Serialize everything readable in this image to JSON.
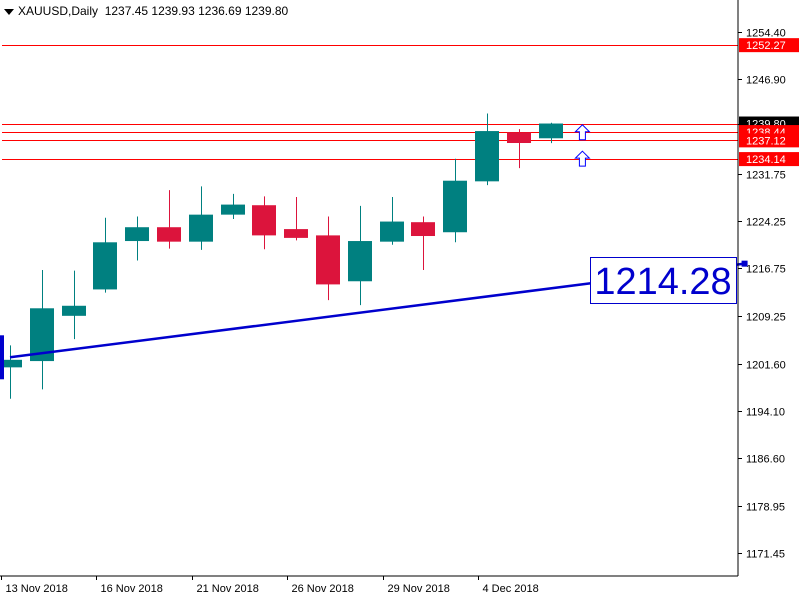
{
  "header": {
    "symbol_tf": "XAUUSD,Daily",
    "ohlc": "1237.45 1239.93 1236.69 1239.80"
  },
  "colors": {
    "bull": "#008080",
    "bear": "#dc143c",
    "level_line": "#ff0000",
    "level_box": "#ff0000",
    "trendline": "#0000cd",
    "current_price_box": "#000000",
    "arrow": "#0000ff",
    "axis": "#000000"
  },
  "chart_data": {
    "type": "candlestick",
    "title": "XAUUSD,Daily",
    "ylim": [
      1167.8,
      1258.5
    ],
    "y_ticks": [
      "1254.40",
      "1246.90",
      "1239.80",
      "1231.75",
      "1224.25",
      "1216.75",
      "1209.25",
      "1201.60",
      "1194.10",
      "1186.60",
      "1178.95",
      "1171.45"
    ],
    "x_tick_labels": [
      {
        "label": "13 Nov 2018",
        "index": 0
      },
      {
        "label": "16 Nov 2018",
        "index": 3
      },
      {
        "label": "21 Nov 2018",
        "index": 6
      },
      {
        "label": "26 Nov 2018",
        "index": 9
      },
      {
        "label": "29 Nov 2018",
        "index": 12
      },
      {
        "label": "4 Dec 2018",
        "index": 15
      }
    ],
    "candles": [
      {
        "o": 1201.0,
        "h": 1204.5,
        "l": 1196.0,
        "c": 1202.2
      },
      {
        "o": 1202.0,
        "h": 1216.5,
        "l": 1197.5,
        "c": 1210.4
      },
      {
        "o": 1209.2,
        "h": 1216.4,
        "l": 1205.5,
        "c": 1210.8
      },
      {
        "o": 1213.4,
        "h": 1224.8,
        "l": 1212.9,
        "c": 1220.9
      },
      {
        "o": 1221.1,
        "h": 1225.0,
        "l": 1218.0,
        "c": 1223.3
      },
      {
        "o": 1223.3,
        "h": 1229.2,
        "l": 1219.9,
        "c": 1221.0
      },
      {
        "o": 1221.0,
        "h": 1229.8,
        "l": 1219.7,
        "c": 1225.3
      },
      {
        "o": 1225.3,
        "h": 1228.6,
        "l": 1224.6,
        "c": 1226.9
      },
      {
        "o": 1226.8,
        "h": 1228.2,
        "l": 1219.8,
        "c": 1222.0
      },
      {
        "o": 1223.0,
        "h": 1228.1,
        "l": 1221.2,
        "c": 1221.6
      },
      {
        "o": 1222.0,
        "h": 1225.0,
        "l": 1211.7,
        "c": 1214.2
      },
      {
        "o": 1214.7,
        "h": 1226.7,
        "l": 1210.9,
        "c": 1221.1
      },
      {
        "o": 1221.0,
        "h": 1228.1,
        "l": 1220.5,
        "c": 1224.2
      },
      {
        "o": 1224.1,
        "h": 1225.0,
        "l": 1216.5,
        "c": 1221.9
      },
      {
        "o": 1222.5,
        "h": 1234.2,
        "l": 1220.9,
        "c": 1230.7
      },
      {
        "o": 1230.6,
        "h": 1241.4,
        "l": 1230.0,
        "c": 1238.6
      },
      {
        "o": 1238.4,
        "h": 1238.9,
        "l": 1232.7,
        "c": 1236.7
      },
      {
        "o": 1237.45,
        "h": 1239.93,
        "l": 1236.69,
        "c": 1239.8
      }
    ],
    "levels": [
      {
        "value": 1252.27,
        "label": "1252.27"
      },
      {
        "value": 1238.44,
        "label": "1238.44"
      },
      {
        "value": 1237.12,
        "label": "1237.12"
      },
      {
        "value": 1234.14,
        "label": "1234.14"
      }
    ],
    "current_price": {
      "value": 1239.8,
      "label": "1239.80"
    },
    "trendline": {
      "points": [
        {
          "index": 0,
          "value": 1202.6
        },
        {
          "index": 23.1,
          "value": 1217.5
        }
      ],
      "label": "1214.28"
    },
    "arrows": [
      {
        "index": 18.0,
        "value": 1239.6,
        "dir": "up"
      },
      {
        "index": 18.0,
        "value": 1235.4,
        "dir": "up"
      }
    ]
  }
}
